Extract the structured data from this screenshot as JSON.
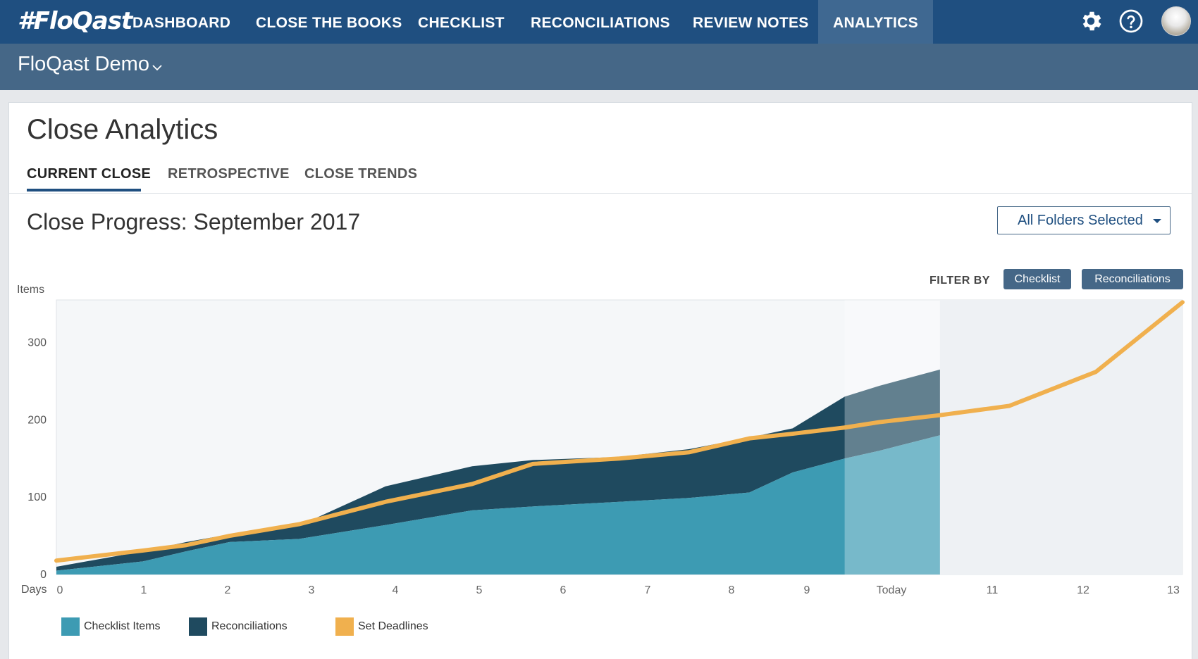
{
  "app": {
    "logo": "#FloQast",
    "nav": [
      "DASHBOARD",
      "CLOSE THE BOOKS",
      "CHECKLIST",
      "RECONCILIATIONS",
      "REVIEW NOTES",
      "ANALYTICS"
    ],
    "active_nav": "ANALYTICS",
    "icons": [
      "gear-icon",
      "help-icon",
      "avatar"
    ]
  },
  "org": {
    "name": "FloQast Demo"
  },
  "page": {
    "title": "Close Analytics",
    "tabs": [
      "CURRENT CLOSE",
      "RETROSPECTIVE",
      "CLOSE TRENDS"
    ],
    "active_tab": "CURRENT CLOSE",
    "section_title": "Close Progress: September 2017",
    "folder_select": "All Folders Selected",
    "filter_label": "FILTER BY",
    "filters": [
      "Checklist",
      "Reconciliations"
    ]
  },
  "colors": {
    "checklist": "#3d9bb3",
    "reconciliations": "#1f4a5f",
    "deadlines": "#f0b04e",
    "nav": "#1f4f80",
    "subbar": "#456787"
  },
  "chart_data": {
    "type": "area",
    "ylabel": "Items",
    "xlabel": "Days",
    "x_ticks": [
      "0",
      "1",
      "2",
      "3",
      "4",
      "5",
      "6",
      "7",
      "8",
      "9",
      "Today",
      "11",
      "12",
      "13"
    ],
    "y_ticks": [
      "0",
      "100",
      "200",
      "300"
    ],
    "ylim": [
      0,
      355
    ],
    "xlim": [
      0,
      13
    ],
    "today_index": 10,
    "series": [
      {
        "name": "Checklist Items",
        "x": [
          0,
          1,
          1.5,
          2,
          2.8,
          3.8,
          4.8,
          5.5,
          6.5,
          7.3,
          8,
          8.5,
          9.1,
          9.5,
          10.2
        ],
        "values": [
          5,
          17,
          30,
          42,
          46,
          64,
          83,
          88,
          94,
          99,
          106,
          132,
          150,
          160,
          180
        ]
      },
      {
        "name": "Reconciliations",
        "x": [
          0,
          1,
          1.5,
          2,
          2.8,
          3.8,
          4.8,
          5.5,
          6.5,
          7.3,
          8,
          8.5,
          9.1,
          9.5,
          10.2
        ],
        "values": [
          5,
          13,
          12,
          10,
          17,
          50,
          57,
          60,
          58,
          63,
          71,
          57,
          80,
          84,
          85
        ]
      },
      {
        "name": "Set Deadlines",
        "x": [
          0,
          1,
          1.5,
          2,
          2.8,
          3.8,
          4.8,
          5.5,
          6.5,
          7.3,
          8,
          8.5,
          9.1,
          9.5,
          10.2,
          11,
          12,
          13
        ],
        "values": [
          18,
          31,
          38,
          50,
          65,
          94,
          117,
          143,
          150,
          158,
          176,
          182,
          190,
          197,
          206,
          218,
          262,
          352
        ]
      }
    ],
    "legend": [
      "Checklist Items",
      "Reconciliations",
      "Set Deadlines"
    ],
    "legend_position": "bottom-left"
  }
}
